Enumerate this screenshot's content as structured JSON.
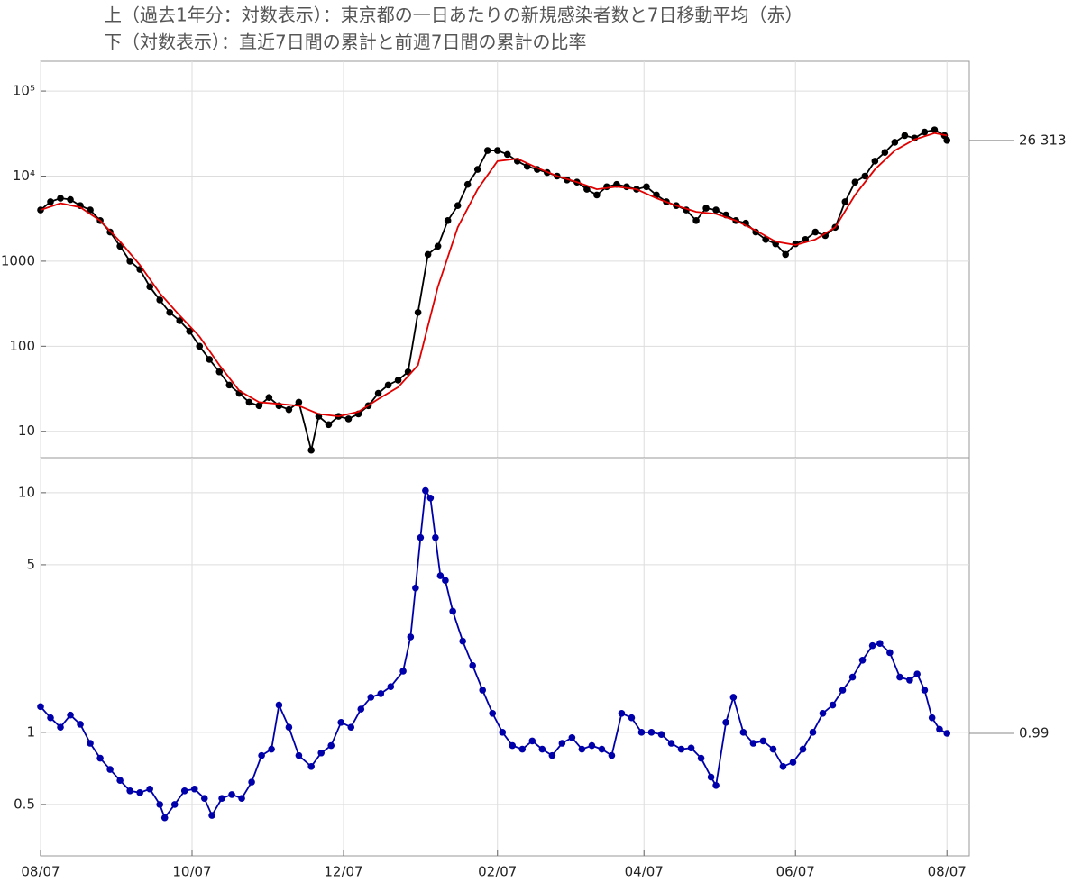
{
  "title_lines": [
    "上（過去1年分：対数表示）：東京都の一日あたりの新規感染者数と7日移動平均（赤）",
    "下（対数表示）：直近7日間の累計と前週7日間の累計の比率"
  ],
  "chart_data": [
    {
      "type": "line",
      "log_y": true,
      "grid": true,
      "xlim": [
        0,
        374
      ],
      "ylim": [
        4.9,
        224000
      ],
      "yticks": [
        10,
        100,
        1000,
        {
          "value": 10000,
          "label": "10⁴"
        },
        {
          "value": 100000,
          "label": "10⁵"
        }
      ],
      "end_label": {
        "value": 26313,
        "label": "26 313"
      },
      "series": [
        {
          "color": "#000000",
          "markers": true,
          "x": [
            0,
            4,
            8,
            12,
            16,
            20,
            24,
            28,
            32,
            36,
            40,
            44,
            48,
            52,
            56,
            60,
            64,
            68,
            72,
            76,
            80,
            84,
            88,
            92,
            96,
            100,
            104,
            109,
            112,
            116,
            120,
            124,
            128,
            132,
            136,
            140,
            144,
            148,
            152,
            156,
            160,
            164,
            168,
            172,
            176,
            180,
            184,
            188,
            192,
            196,
            200,
            204,
            208,
            212,
            216,
            220,
            224,
            228,
            232,
            236,
            240,
            244,
            248,
            252,
            256,
            260,
            264,
            268,
            272,
            276,
            280,
            284,
            288,
            292,
            296,
            300,
            304,
            308,
            312,
            316,
            320,
            324,
            328,
            332,
            336,
            340,
            344,
            348,
            352,
            356,
            360,
            364,
            365
          ],
          "values": [
            4000,
            5000,
            5500,
            5300,
            4500,
            4000,
            3000,
            2200,
            1500,
            1000,
            800,
            500,
            350,
            250,
            200,
            150,
            100,
            70,
            50,
            35,
            28,
            22,
            20,
            25,
            20,
            18,
            22,
            6,
            15,
            12,
            15,
            14,
            16,
            20,
            28,
            35,
            40,
            50,
            250,
            1200,
            1500,
            3000,
            4500,
            8000,
            12000,
            20000,
            20000,
            18000,
            15000,
            13000,
            12000,
            11000,
            10000,
            9000,
            8500,
            7000,
            6000,
            7500,
            8000,
            7500,
            7000,
            7500,
            6000,
            5000,
            4500,
            4000,
            3000,
            4200,
            4000,
            3500,
            3000,
            2800,
            2200,
            1800,
            1600,
            1200,
            1600,
            1800,
            2200,
            2000,
            2500,
            5000,
            8500,
            10000,
            15000,
            19000,
            25000,
            30000,
            28000,
            33000,
            35000,
            30000,
            26313
          ]
        },
        {
          "color": "#e00000",
          "markers": false,
          "x": [
            0,
            8,
            16,
            24,
            32,
            40,
            48,
            56,
            64,
            72,
            80,
            88,
            96,
            104,
            112,
            120,
            128,
            136,
            144,
            152,
            160,
            168,
            176,
            184,
            192,
            200,
            208,
            216,
            224,
            232,
            240,
            248,
            256,
            264,
            272,
            280,
            288,
            296,
            304,
            312,
            320,
            328,
            336,
            344,
            352,
            360,
            365
          ],
          "values": [
            4000,
            4800,
            4300,
            3000,
            1700,
            900,
            420,
            230,
            130,
            60,
            30,
            22,
            21,
            20,
            16,
            15,
            17,
            24,
            33,
            60,
            500,
            2500,
            7000,
            15000,
            16000,
            12500,
            10000,
            8500,
            7000,
            7500,
            7000,
            5500,
            4500,
            3800,
            3600,
            3000,
            2300,
            1700,
            1550,
            1800,
            2500,
            6000,
            12000,
            20000,
            27000,
            32000,
            30000
          ]
        }
      ]
    },
    {
      "type": "line",
      "log_y": true,
      "grid": true,
      "xlim": [
        0,
        374
      ],
      "ylim": [
        0.305,
        14
      ],
      "yticks": [
        0.5,
        1,
        5,
        10
      ],
      "xticks": [
        {
          "value": 0,
          "label": "08/07"
        },
        {
          "value": 61,
          "label": "10/07"
        },
        {
          "value": 122,
          "label": "12/07"
        },
        {
          "value": 184,
          "label": "02/07"
        },
        {
          "value": 243,
          "label": "04/07"
        },
        {
          "value": 304,
          "label": "06/07"
        },
        {
          "value": 365,
          "label": "08/07"
        }
      ],
      "end_label": {
        "value": 0.99,
        "label": "0.99"
      },
      "series": [
        {
          "color": "#0000aa",
          "markers": true,
          "x": [
            0,
            4,
            8,
            12,
            16,
            20,
            24,
            28,
            32,
            36,
            40,
            44,
            48,
            50,
            54,
            58,
            62,
            66,
            69,
            73,
            77,
            81,
            85,
            89,
            93,
            96,
            100,
            104,
            109,
            113,
            117,
            121,
            125,
            129,
            133,
            137,
            141,
            146,
            149,
            151,
            153,
            155,
            157,
            159,
            161,
            163,
            166,
            170,
            174,
            178,
            182,
            186,
            190,
            194,
            198,
            202,
            206,
            210,
            214,
            218,
            222,
            226,
            230,
            234,
            238,
            242,
            246,
            250,
            254,
            258,
            262,
            266,
            270,
            272,
            276,
            279,
            283,
            287,
            291,
            295,
            299,
            303,
            307,
            311,
            315,
            319,
            323,
            327,
            331,
            335,
            338,
            342,
            346,
            350,
            353,
            356,
            359,
            362,
            365
          ],
          "values": [
            1.28,
            1.15,
            1.05,
            1.18,
            1.08,
            0.9,
            0.78,
            0.7,
            0.63,
            0.57,
            0.56,
            0.58,
            0.5,
            0.44,
            0.5,
            0.57,
            0.58,
            0.53,
            0.45,
            0.53,
            0.55,
            0.53,
            0.62,
            0.8,
            0.85,
            1.3,
            1.05,
            0.8,
            0.72,
            0.82,
            0.88,
            1.1,
            1.05,
            1.25,
            1.4,
            1.45,
            1.55,
            1.8,
            2.5,
            4,
            6.5,
            10.2,
            9.5,
            6.5,
            4.5,
            4.3,
            3.2,
            2.4,
            1.9,
            1.5,
            1.2,
            1.0,
            0.88,
            0.85,
            0.92,
            0.85,
            0.8,
            0.9,
            0.95,
            0.85,
            0.88,
            0.85,
            0.8,
            1.2,
            1.15,
            1.0,
            1.0,
            0.98,
            0.9,
            0.85,
            0.86,
            0.78,
            0.65,
            0.6,
            1.1,
            1.4,
            1.0,
            0.9,
            0.92,
            0.85,
            0.72,
            0.75,
            0.85,
            1.0,
            1.2,
            1.3,
            1.5,
            1.7,
            2.0,
            2.3,
            2.35,
            2.15,
            1.7,
            1.65,
            1.75,
            1.5,
            1.15,
            1.03,
            0.99
          ]
        }
      ]
    }
  ]
}
